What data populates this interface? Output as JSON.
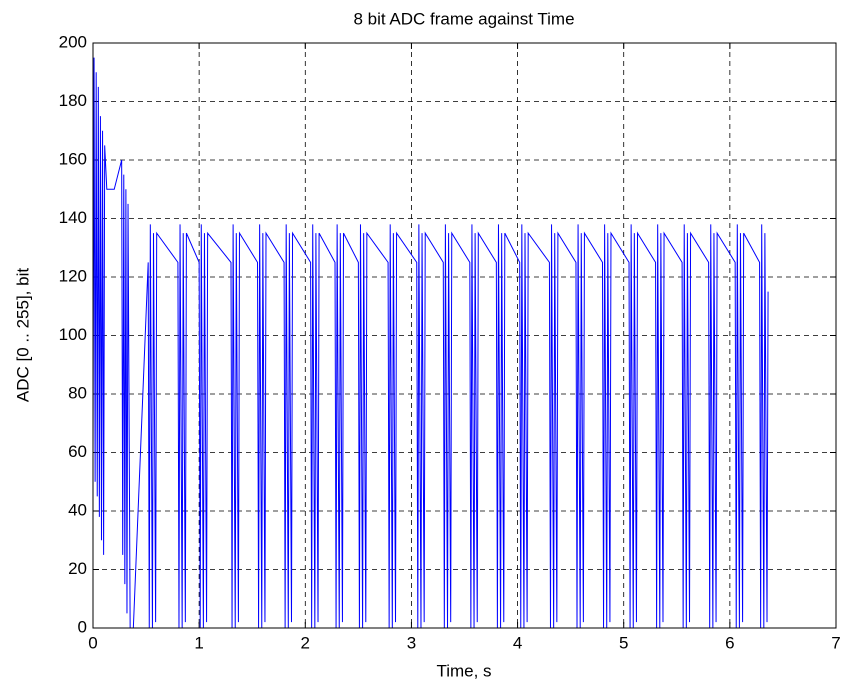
{
  "chart_data": {
    "type": "line",
    "title": "8 bit ADC frame against Time",
    "x_label": "Time, s",
    "y_label": "ADC [0 .. 255], bit",
    "color": "#0000ff",
    "grid": true,
    "x": [
      0,
      0.01,
      0.02,
      0.03,
      0.04,
      0.05,
      0.06,
      0.07,
      0.08,
      0.09,
      0.1,
      0.11,
      0.13,
      0.2,
      0.27,
      0.28,
      0.29,
      0.3,
      0.31,
      0.32,
      0.33,
      0.35,
      0.38,
      0.52,
      0.53,
      0.54,
      0.56,
      0.57,
      0.59,
      0.6,
      0.8,
      0.81,
      0.82,
      0.84,
      0.85,
      0.87,
      0.88,
      1.0,
      1.01,
      1.02,
      1.04,
      1.05,
      1.07,
      1.08,
      1.3,
      1.31,
      1.32,
      1.34,
      1.35,
      1.37,
      1.38,
      1.55,
      1.56,
      1.57,
      1.59,
      1.6,
      1.62,
      1.63,
      1.8,
      1.81,
      1.82,
      1.84,
      1.85,
      1.87,
      1.88,
      2.05,
      2.06,
      2.07,
      2.09,
      2.1,
      2.12,
      2.13,
      2.28,
      2.29,
      2.3,
      2.32,
      2.33,
      2.35,
      2.36,
      2.5,
      2.51,
      2.52,
      2.54,
      2.55,
      2.57,
      2.58,
      2.78,
      2.79,
      2.8,
      2.82,
      2.83,
      2.85,
      2.86,
      3.05,
      3.06,
      3.07,
      3.09,
      3.1,
      3.12,
      3.13,
      3.3,
      3.31,
      3.32,
      3.34,
      3.35,
      3.37,
      3.38,
      3.55,
      3.56,
      3.57,
      3.59,
      3.6,
      3.62,
      3.63,
      3.8,
      3.81,
      3.82,
      3.84,
      3.85,
      3.87,
      3.88,
      4.02,
      4.03,
      4.04,
      4.06,
      4.07,
      4.09,
      4.1,
      4.3,
      4.31,
      4.32,
      4.34,
      4.35,
      4.37,
      4.38,
      4.55,
      4.56,
      4.57,
      4.59,
      4.6,
      4.62,
      4.63,
      4.8,
      4.81,
      4.82,
      4.84,
      4.85,
      4.87,
      4.88,
      5.05,
      5.06,
      5.07,
      5.09,
      5.1,
      5.12,
      5.13,
      5.3,
      5.31,
      5.32,
      5.34,
      5.35,
      5.37,
      5.38,
      5.55,
      5.56,
      5.57,
      5.59,
      5.6,
      5.62,
      5.63,
      5.8,
      5.81,
      5.82,
      5.84,
      5.85,
      5.87,
      5.88,
      6.05,
      6.06,
      6.07,
      6.09,
      6.1,
      6.12,
      6.13,
      6.28,
      6.29,
      6.3,
      6.32,
      6.33,
      6.35,
      6.36
    ],
    "values": [
      60,
      195,
      50,
      190,
      45,
      185,
      38,
      175,
      30,
      170,
      25,
      165,
      150,
      150,
      160,
      25,
      155,
      15,
      150,
      5,
      145,
      0,
      0,
      125,
      0,
      138,
      0,
      135,
      2,
      135,
      125,
      0,
      138,
      0,
      135,
      2,
      135,
      125,
      0,
      138,
      0,
      135,
      2,
      135,
      125,
      0,
      138,
      0,
      135,
      2,
      135,
      125,
      0,
      138,
      0,
      135,
      2,
      135,
      125,
      0,
      138,
      0,
      135,
      2,
      135,
      125,
      0,
      138,
      0,
      135,
      2,
      135,
      125,
      0,
      138,
      0,
      135,
      2,
      135,
      125,
      0,
      138,
      0,
      135,
      2,
      135,
      125,
      0,
      138,
      0,
      135,
      2,
      135,
      125,
      0,
      138,
      0,
      135,
      2,
      135,
      125,
      0,
      138,
      0,
      135,
      2,
      135,
      125,
      0,
      138,
      0,
      135,
      2,
      135,
      125,
      0,
      138,
      0,
      135,
      2,
      135,
      125,
      0,
      138,
      0,
      135,
      2,
      135,
      125,
      0,
      138,
      0,
      135,
      2,
      135,
      125,
      0,
      138,
      0,
      135,
      2,
      135,
      125,
      0,
      138,
      0,
      135,
      2,
      135,
      125,
      0,
      138,
      0,
      135,
      2,
      135,
      125,
      0,
      138,
      0,
      135,
      2,
      135,
      125,
      0,
      138,
      0,
      135,
      2,
      135,
      125,
      0,
      138,
      0,
      135,
      2,
      135,
      125,
      0,
      138,
      0,
      135,
      2,
      135,
      125,
      0,
      138,
      0,
      135,
      2,
      115
    ],
    "xlim": [
      0,
      7
    ],
    "xticks": [
      0,
      1,
      2,
      3,
      4,
      5,
      6,
      7
    ],
    "ylim": [
      0,
      200
    ],
    "yticks": [
      0,
      20,
      40,
      60,
      80,
      100,
      120,
      140,
      160,
      180,
      200
    ]
  }
}
